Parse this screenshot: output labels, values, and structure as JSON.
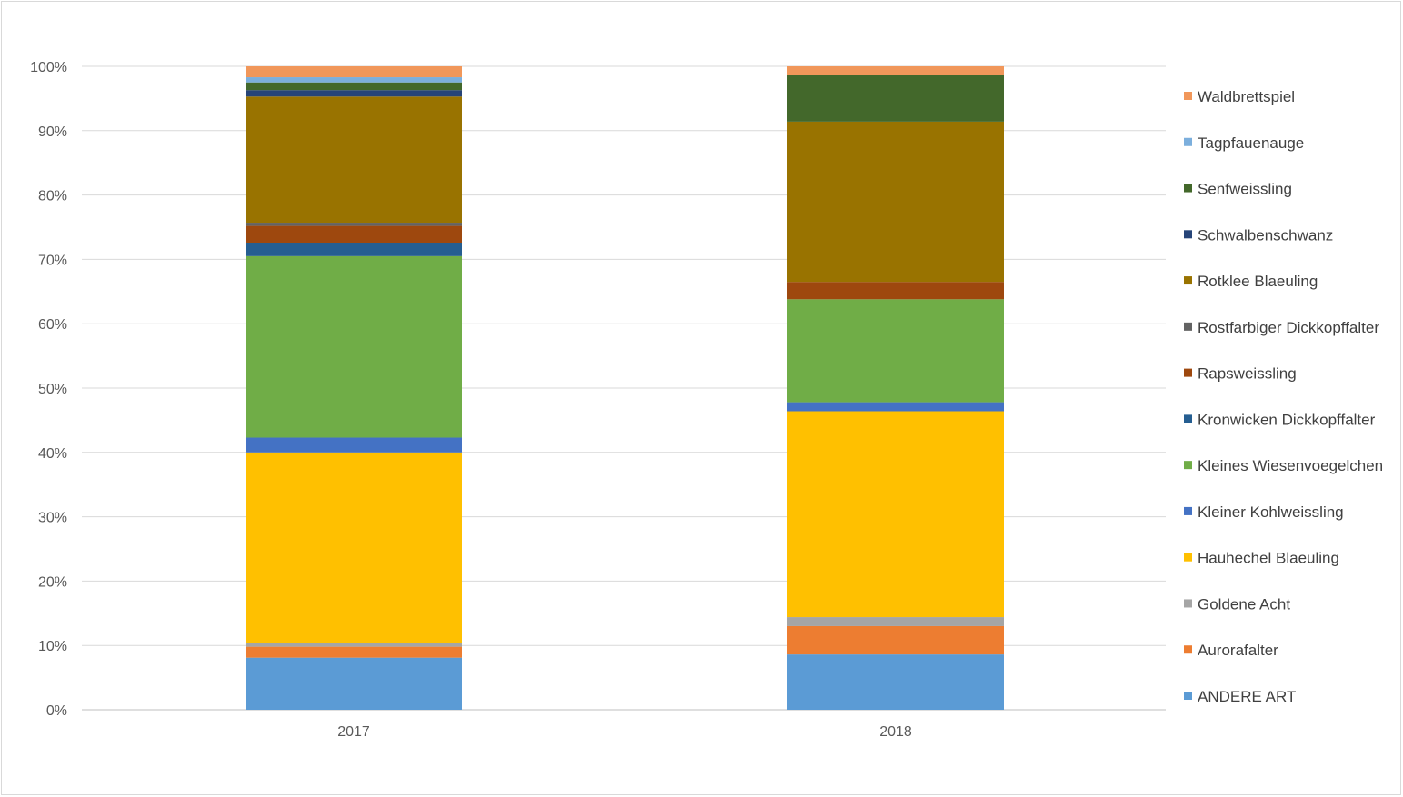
{
  "chart_data": {
    "type": "bar",
    "stacked": true,
    "percent": true,
    "categories": [
      "2017",
      "2018"
    ],
    "y_ticks": [
      "0%",
      "10%",
      "20%",
      "30%",
      "40%",
      "50%",
      "60%",
      "70%",
      "80%",
      "90%",
      "100%"
    ],
    "ylim": [
      0,
      100
    ],
    "grid": true,
    "legend_position": "right",
    "series": [
      {
        "name": "ANDERE ART",
        "color": "#5b9bd5",
        "values": [
          8.1,
          8.6
        ]
      },
      {
        "name": "Aurorafalter",
        "color": "#ed7d31",
        "values": [
          1.7,
          4.4
        ]
      },
      {
        "name": "Goldene Acht",
        "color": "#a5a5a5",
        "values": [
          0.6,
          1.4
        ]
      },
      {
        "name": "Hauhechel Blaeuling",
        "color": "#ffc000",
        "values": [
          29.6,
          32.0
        ]
      },
      {
        "name": "Kleiner Kohlweissling",
        "color": "#4472c4",
        "values": [
          2.3,
          1.4
        ]
      },
      {
        "name": "Kleines Wiesenvoegelchen",
        "color": "#70ad47",
        "values": [
          28.2,
          16.0
        ]
      },
      {
        "name": "Kronwicken Dickkopffalter",
        "color": "#255e91",
        "values": [
          2.1,
          0.0
        ]
      },
      {
        "name": "Rapsweissling",
        "color": "#9e480e",
        "values": [
          2.6,
          2.7
        ]
      },
      {
        "name": "Rostfarbiger Dickkopffalter",
        "color": "#636363",
        "values": [
          0.5,
          0.0
        ]
      },
      {
        "name": "Rotklee Blaeuling",
        "color": "#997300",
        "values": [
          19.6,
          24.9
        ]
      },
      {
        "name": "Schwalbenschwanz",
        "color": "#264478",
        "values": [
          1.0,
          0.0
        ]
      },
      {
        "name": "Senfweissling",
        "color": "#43682b",
        "values": [
          1.2,
          7.2
        ]
      },
      {
        "name": "Tagpfauenauge",
        "color": "#7cafdd",
        "values": [
          0.8,
          0.0
        ]
      },
      {
        "name": "Waldbrettspiel",
        "color": "#f1975a",
        "values": [
          1.7,
          1.4
        ]
      }
    ]
  }
}
